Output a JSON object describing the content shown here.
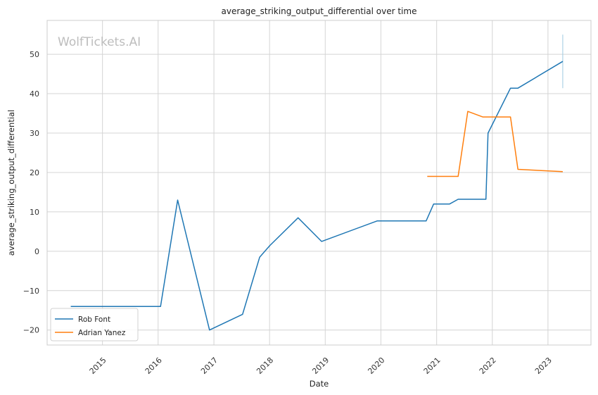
{
  "chart_data": {
    "type": "line",
    "title": "average_striking_output_differential over time",
    "xlabel": "Date",
    "ylabel": "average_striking_output_differential",
    "watermark": "WolfTickets.AI",
    "x_ticks": [
      "2015",
      "2016",
      "2017",
      "2018",
      "2019",
      "2020",
      "2021",
      "2022",
      "2023"
    ],
    "y_ticks": [
      -20,
      -10,
      0,
      10,
      20,
      30,
      40,
      50
    ],
    "y_tick_labels": [
      "−20",
      "−10",
      "0",
      "10",
      "20",
      "30",
      "40",
      "50"
    ],
    "xlim": [
      "2014-01-03",
      "2023-10-10"
    ],
    "ylim": [
      -23.8,
      58.6
    ],
    "grid": true,
    "legend_position": "lower-left",
    "series": [
      {
        "name": "Rob Font",
        "color": "#1f77b4",
        "points": [
          [
            "2014-06-07",
            -14.0
          ],
          [
            "2016-01-17",
            -14.0
          ],
          [
            "2016-05-08",
            13.0
          ],
          [
            "2016-12-03",
            -20.0
          ],
          [
            "2017-07-08",
            -16.0
          ],
          [
            "2017-10-28",
            -1.5
          ],
          [
            "2018-01-04",
            1.5
          ],
          [
            "2018-07-07",
            8.5
          ],
          [
            "2018-12-08",
            2.5
          ],
          [
            "2019-12-07",
            7.7
          ],
          [
            "2020-10-24",
            7.7
          ],
          [
            "2020-12-12",
            12.0
          ],
          [
            "2021-03-27",
            12.0
          ],
          [
            "2021-05-22",
            13.2
          ],
          [
            "2021-11-20",
            13.2
          ],
          [
            "2021-12-04",
            30.0
          ],
          [
            "2022-04-30",
            41.4
          ],
          [
            "2022-06-18",
            41.4
          ],
          [
            "2023-04-08",
            48.2
          ]
        ]
      },
      {
        "name": "Adrian Yanez",
        "color": "#ff7f0e",
        "points": [
          [
            "2020-10-31",
            19.0
          ],
          [
            "2021-05-22",
            19.0
          ],
          [
            "2021-07-24",
            35.5
          ],
          [
            "2021-10-30",
            34.1
          ],
          [
            "2022-04-30",
            34.1
          ],
          [
            "2022-06-18",
            20.8
          ],
          [
            "2023-04-08",
            20.2
          ]
        ]
      }
    ],
    "error_bar": {
      "x": "2023-04-08",
      "low": 41.4,
      "high": 55.0,
      "color": "#9ecae1"
    }
  }
}
